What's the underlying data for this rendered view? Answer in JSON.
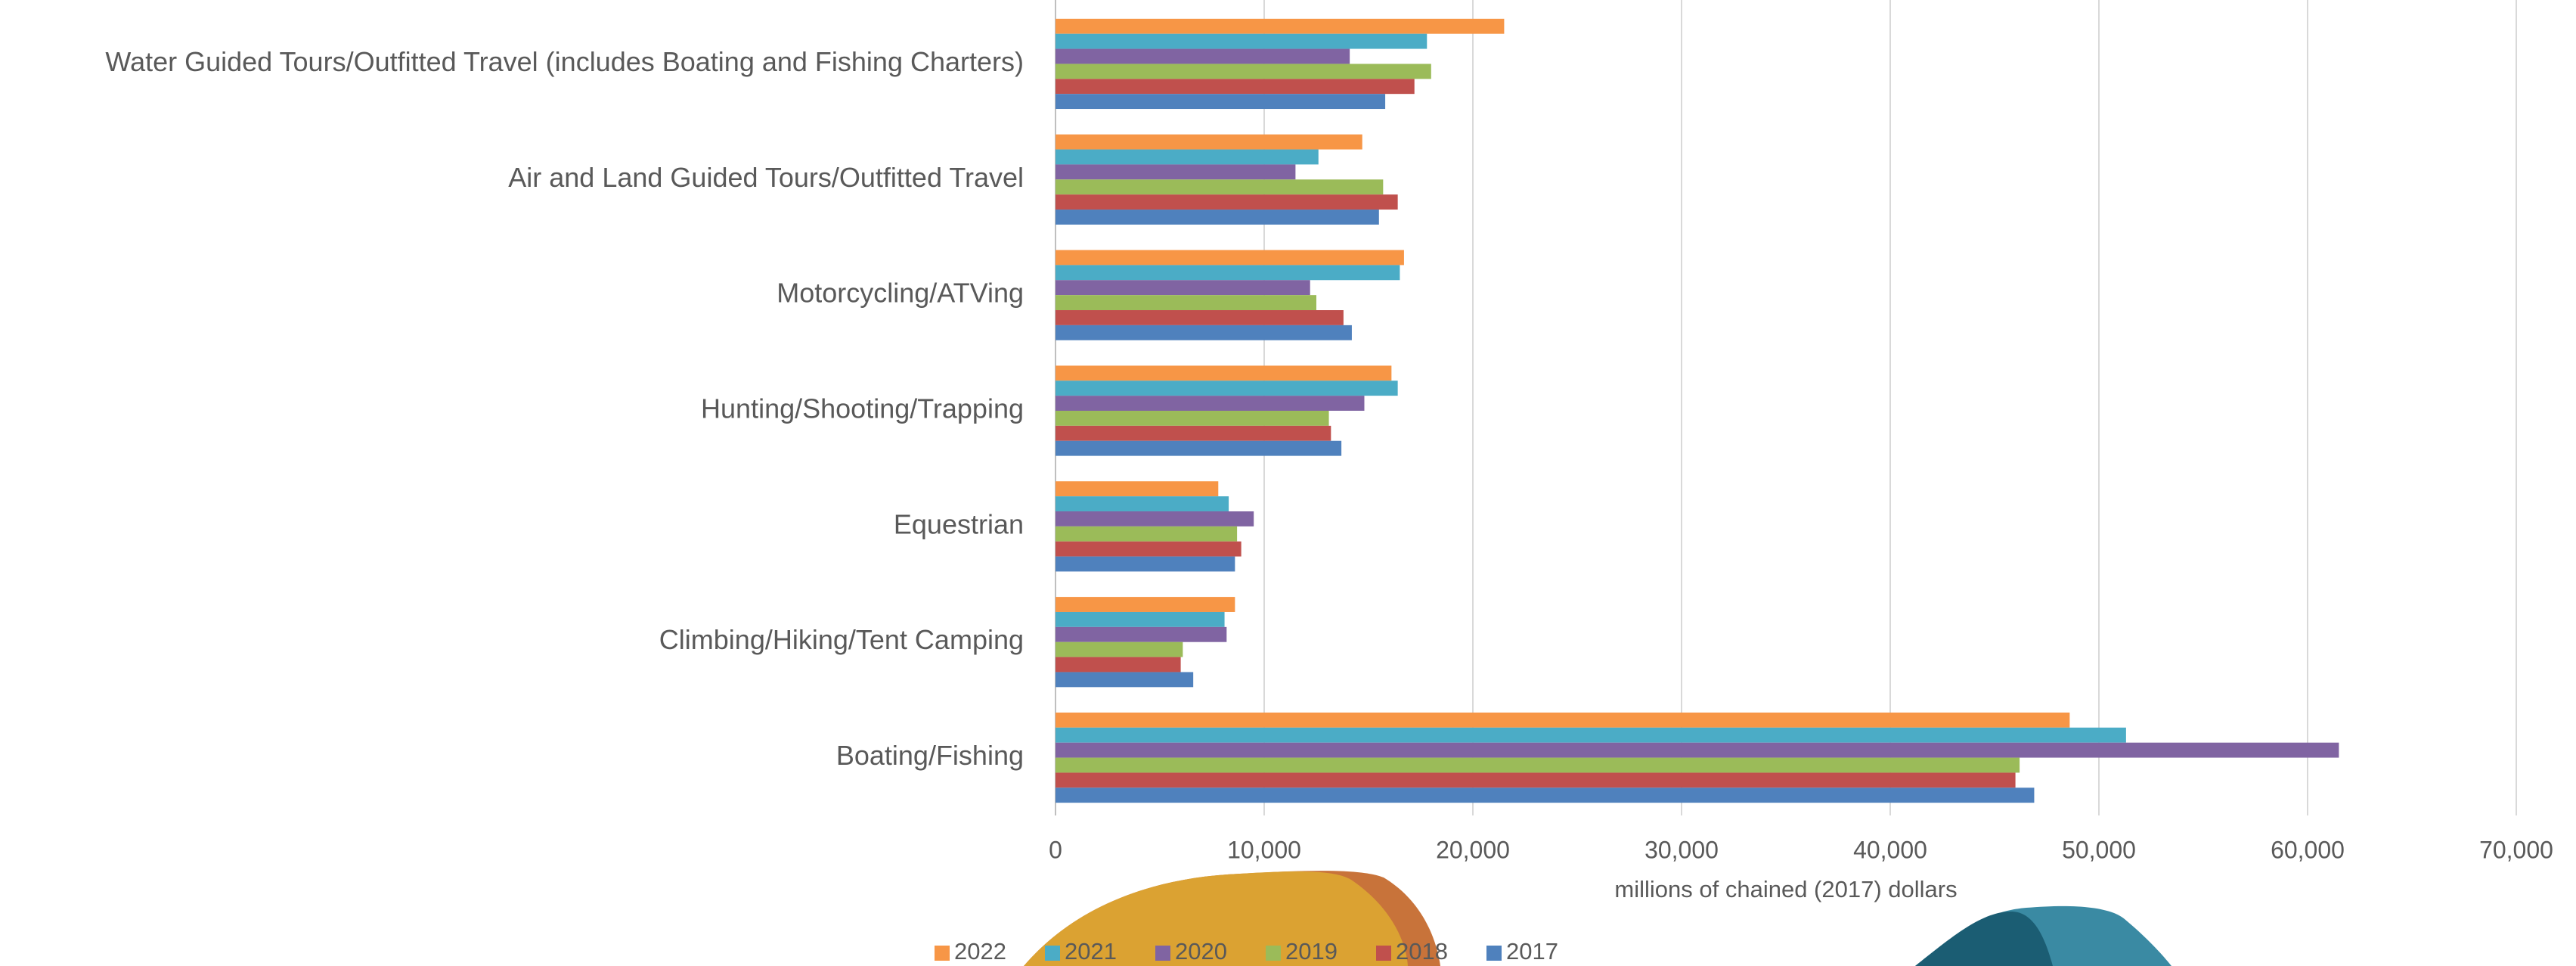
{
  "chart_data": {
    "type": "barh",
    "xlabel": "millions of chained (2017) dollars",
    "categories": [
      "Water Guided Tours/Outfitted Travel (includes Boating and Fishing Charters)",
      "Air and Land Guided Tours/Outfitted Travel",
      "Motorcycling/ATVing",
      "Hunting/Shooting/Trapping",
      "Equestrian",
      "Climbing/Hiking/Tent Camping",
      "Boating/Fishing"
    ],
    "series": [
      {
        "name": "2022",
        "color": "#f79646",
        "values": [
          21500,
          14700,
          16700,
          16100,
          7800,
          8600,
          48600
        ]
      },
      {
        "name": "2021",
        "color": "#4bacc6",
        "values": [
          17800,
          12600,
          16500,
          16400,
          8300,
          8100,
          51300
        ]
      },
      {
        "name": "2020",
        "color": "#8064a2",
        "values": [
          14100,
          11500,
          12200,
          14800,
          9500,
          8200,
          61500
        ]
      },
      {
        "name": "2019",
        "color": "#9bbb59",
        "values": [
          18000,
          15700,
          12500,
          13100,
          8700,
          6100,
          46200
        ]
      },
      {
        "name": "2018",
        "color": "#c0504d",
        "values": [
          17200,
          16400,
          13800,
          13200,
          8900,
          6000,
          46000
        ]
      },
      {
        "name": "2017",
        "color": "#4f81bd",
        "values": [
          15800,
          15500,
          14200,
          13700,
          8600,
          6600,
          46900
        ]
      }
    ],
    "xlim": [
      0,
      70000
    ],
    "xticks": [
      0,
      {
        "value": 10000,
        "label": "10,000"
      },
      {
        "value": 20000,
        "label": "20,000"
      },
      {
        "value": 30000,
        "label": "30,000"
      },
      {
        "value": 40000,
        "label": "40,000"
      },
      {
        "value": 50000,
        "label": "50,000"
      },
      {
        "value": 60000,
        "label": "60,000"
      },
      {
        "value": 70000,
        "label": "70,000"
      }
    ],
    "grid": true,
    "legend": "bottom"
  }
}
